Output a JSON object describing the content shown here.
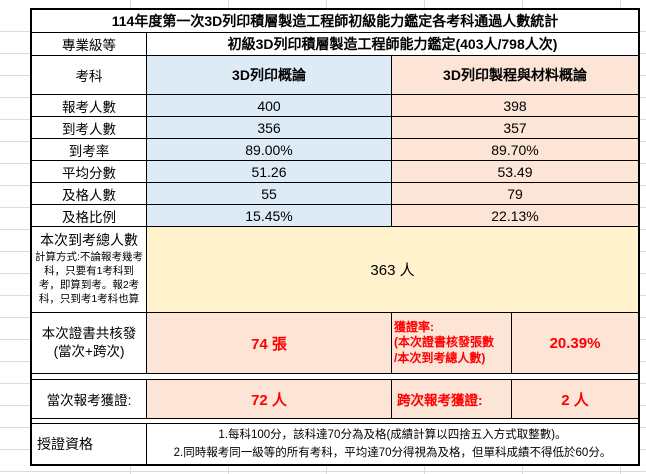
{
  "title": "114年度第一次3D列印積層製造工程師初級能力鑑定各考科通過人數統計",
  "level": {
    "label": "專業級等",
    "value": "初級3D列印積層製造工程師能力鑑定(403人/798人次)"
  },
  "subjects": {
    "label": "考科",
    "col1": "3D列印概論",
    "col2": "3D列印製程與材料概論"
  },
  "stats": {
    "rows": [
      {
        "label": "報考人數",
        "col1": "400",
        "col2": "398"
      },
      {
        "label": "到考人數",
        "col1": "356",
        "col2": "357"
      },
      {
        "label": "到考率",
        "col1": "89.00%",
        "col2": "89.70%"
      },
      {
        "label": "平均分數",
        "col1": "51.26",
        "col2": "53.49"
      },
      {
        "label": "及格人數",
        "col1": "55",
        "col2": "79"
      },
      {
        "label": "及格比例",
        "col1": "15.45%",
        "col2": "22.13%"
      }
    ]
  },
  "total_attended": {
    "label": "本次到考總人數",
    "note": "計算方式:不論報考幾考科，只要有1考科到考，即算到考。報2考科，只到考1考科也算",
    "value": "363 人"
  },
  "certificates": {
    "label_line1": "本次證書共核發",
    "label_line2": "(當次+跨次)",
    "count": "74 張",
    "rate_label": "獲證率:",
    "rate_note_line1": "(本次證書核發張數",
    "rate_note_line2": "/本次到考總人數)",
    "rate": "20.39%"
  },
  "awarded": {
    "current_label": "當次報考獲證:",
    "current_value": "72 人",
    "cross_label": "跨次報考獲證:",
    "cross_value": "2 人"
  },
  "qualification": {
    "label": "授證資格",
    "note1": "1.每科100分，該科達70分為及格(成績計算以四捨五入方式取整數)。",
    "note2": "2.同時報考同一級等的所有考科，平均達70分得視為及格，但單科成績不得低於60分。"
  },
  "colors": {
    "header_blue": "#DDEBF7",
    "header_peach": "#FCE4D6",
    "total_yellow": "#FFF2CC",
    "highlight_red": "#FF0000",
    "border": "#000000"
  },
  "chart_data": {
    "type": "table",
    "title": "114年度第一次3D列印積層製造工程師初級能力鑑定各考科通過人數統計",
    "columns": [
      "考科",
      "3D列印概論",
      "3D列印製程與材料概論"
    ],
    "rows": [
      [
        "報考人數",
        400,
        398
      ],
      [
        "到考人數",
        356,
        357
      ],
      [
        "到考率",
        "89.00%",
        "89.70%"
      ],
      [
        "平均分數",
        51.26,
        53.49
      ],
      [
        "及格人數",
        55,
        79
      ],
      [
        "及格比例",
        "15.45%",
        "22.13%"
      ]
    ],
    "summary": {
      "本次到考總人數": "363 人",
      "本次證書共核發(當次+跨次)": "74 張",
      "獲證率": "20.39%",
      "當次報考獲證": "72 人",
      "跨次報考獲證": "2 人"
    }
  }
}
